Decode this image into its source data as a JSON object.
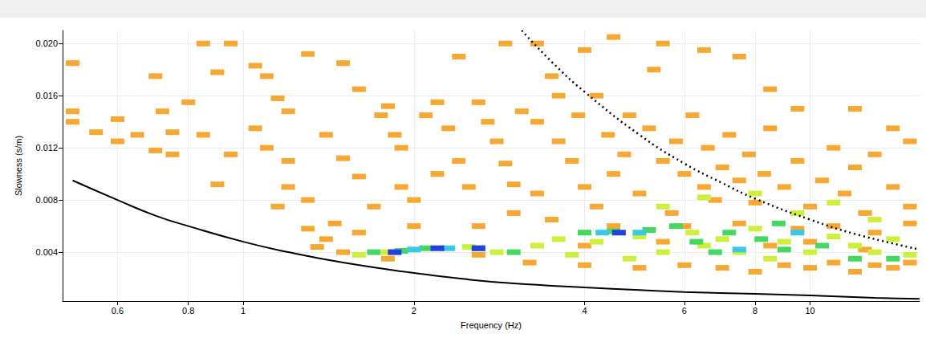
{
  "chart_data": {
    "type": "scatter",
    "x_label": "Frequency (Hz)",
    "y_label": "Slowness (s/m)",
    "log": "x",
    "grid": true,
    "xlim": [
      0.48,
      15.6
    ],
    "ylim": [
      0.00025,
      0.021
    ],
    "xticks": [
      0.6,
      0.8,
      1,
      2,
      4,
      6,
      8,
      10
    ],
    "yticks": [
      0.004,
      0.008,
      0.012,
      0.016,
      {
        "value": 0.02,
        "label": "0.020"
      }
    ],
    "series": [
      {
        "type": "scatter",
        "color": "#f7a833",
        "marker": "square",
        "x": [
          0.5,
          0.5,
          0.5,
          0.55,
          0.6,
          0.6,
          0.65,
          0.7,
          0.7,
          0.75,
          0.75,
          0.8,
          0.85,
          0.9,
          0.95,
          0.85,
          0.95,
          1.05,
          1.1,
          1.15,
          1.05,
          1.1,
          1.2,
          1.2,
          1.3,
          1.15,
          1.3,
          1.4,
          1.35,
          1.5,
          1.45,
          1.6,
          1.4,
          1.5,
          1.3,
          1.5,
          1.6,
          1.6,
          1.7,
          1.75,
          1.8,
          1.85,
          1.9,
          1.9,
          2.0,
          2.0,
          2.1,
          2.2,
          2.3,
          2.4,
          2.2,
          2.5,
          2.6,
          2.6,
          2.7,
          2.8,
          2.9,
          3.0,
          3.0,
          3.1,
          3.3,
          3.3,
          3.5,
          3.6,
          3.6,
          3.5,
          3.8,
          3.9,
          4.0,
          4.2,
          4.2,
          4.4,
          4.5,
          4.7,
          4.8,
          5.0,
          5.2,
          5.3,
          5.5,
          5.7,
          5.8,
          6.0,
          6.2,
          6.5,
          6.6,
          6.8,
          7.0,
          7.2,
          7.5,
          7.8,
          8.0,
          8.3,
          8.5,
          9.0,
          9.5,
          10,
          10.5,
          11,
          11.5,
          12,
          12.5,
          13,
          14,
          15,
          15,
          3.3,
          4.0,
          4.5,
          5.5,
          6.5,
          7.5,
          8.5,
          9.5,
          12,
          14,
          0.72,
          0.9,
          1.2,
          2.4,
          2.9,
          1.8,
          2.6,
          3.2,
          4.0,
          5.0,
          6.0,
          7.0,
          8.0,
          9.0,
          10,
          11,
          12,
          13,
          14,
          15,
          4.5,
          6.0,
          7.5,
          9.5,
          11,
          13,
          15,
          4.0,
          5.5,
          8.5,
          10,
          12.5
        ],
        "values": [
          0.0185,
          0.0148,
          0.014,
          0.0132,
          0.0142,
          0.0125,
          0.013,
          0.0118,
          0.0175,
          0.0115,
          0.0132,
          0.0155,
          0.013,
          0.0178,
          0.0115,
          0.02,
          0.02,
          0.0183,
          0.0175,
          0.0158,
          0.0135,
          0.012,
          0.011,
          0.009,
          0.008,
          0.0075,
          0.0058,
          0.005,
          0.0044,
          0.004,
          0.0062,
          0.0055,
          0.013,
          0.0112,
          0.0192,
          0.0185,
          0.0165,
          0.0098,
          0.0075,
          0.0145,
          0.0152,
          0.013,
          0.012,
          0.009,
          0.008,
          0.006,
          0.0145,
          0.0155,
          0.0135,
          0.011,
          0.01,
          0.009,
          0.0155,
          0.006,
          0.014,
          0.0125,
          0.0108,
          0.0092,
          0.007,
          0.0148,
          0.014,
          0.0085,
          0.0175,
          0.016,
          0.0125,
          0.0065,
          0.011,
          0.0145,
          0.009,
          0.0075,
          0.016,
          0.013,
          0.01,
          0.0115,
          0.0145,
          0.0085,
          0.0135,
          0.018,
          0.011,
          0.007,
          0.0125,
          0.01,
          0.0145,
          0.009,
          0.012,
          0.008,
          0.0105,
          0.013,
          0.0095,
          0.0115,
          0.0078,
          0.01,
          0.0135,
          0.009,
          0.011,
          0.0075,
          0.0095,
          0.012,
          0.0085,
          0.0105,
          0.007,
          0.0115,
          0.009,
          0.0075,
          0.0125,
          0.02,
          0.0195,
          0.0205,
          0.02,
          0.0195,
          0.019,
          0.0165,
          0.015,
          0.015,
          0.0135,
          0.0148,
          0.0092,
          0.0148,
          0.019,
          0.02,
          0.0035,
          0.0038,
          0.0032,
          0.003,
          0.0028,
          0.003,
          0.0028,
          0.0025,
          0.003,
          0.0028,
          0.0032,
          0.0025,
          0.003,
          0.0028,
          0.0032,
          0.006,
          0.006,
          0.0062,
          0.0058,
          0.006,
          0.0055,
          0.0062,
          0.0045,
          0.0048,
          0.0045,
          0.0048,
          0.0042
        ]
      },
      {
        "type": "scatter",
        "color": "#ccf03c",
        "marker": "square",
        "x": [
          1.6,
          1.8,
          2.5,
          2.8,
          3.3,
          3.6,
          4.2,
          5.0,
          5.5,
          6.2,
          6.5,
          7.0,
          7.5,
          8.0,
          8.5,
          9.0,
          10,
          11,
          12,
          13,
          14,
          15,
          5.5,
          6.5,
          8.0,
          9.5,
          11,
          4.8,
          3.8,
          13
        ],
        "values": [
          0.0038,
          0.004,
          0.0044,
          0.004,
          0.0045,
          0.005,
          0.0048,
          0.0052,
          0.004,
          0.0055,
          0.0045,
          0.005,
          0.004,
          0.0058,
          0.0035,
          0.0048,
          0.004,
          0.0052,
          0.0045,
          0.004,
          0.005,
          0.0038,
          0.0075,
          0.0082,
          0.0085,
          0.007,
          0.0078,
          0.0035,
          0.0038,
          0.0065
        ]
      },
      {
        "type": "scatter",
        "color": "#44d860",
        "marker": "square",
        "x": [
          1.7,
          1.9,
          2.1,
          2.6,
          3.0,
          4.0,
          4.5,
          5.2,
          5.8,
          6.3,
          7.2,
          8.2,
          9.0,
          10.5,
          12,
          14,
          6.8,
          8.8
        ],
        "values": [
          0.004,
          0.0041,
          0.0043,
          0.0043,
          0.004,
          0.0055,
          0.0056,
          0.0057,
          0.006,
          0.0048,
          0.0055,
          0.005,
          0.0042,
          0.0045,
          0.0035,
          0.0035,
          0.004,
          0.0062
        ]
      },
      {
        "type": "scatter",
        "color": "#38c8e8",
        "marker": "square",
        "x": [
          2.0,
          2.3,
          4.3,
          5.0,
          7.5,
          9.5
        ],
        "values": [
          0.0042,
          0.0043,
          0.0055,
          0.0055,
          0.0042,
          0.0055
        ]
      },
      {
        "type": "scatter",
        "color": "#2040e0",
        "marker": "square",
        "x": [
          1.85,
          2.2,
          2.6,
          4.6
        ],
        "values": [
          0.004,
          0.0043,
          0.0043,
          0.0055
        ]
      },
      {
        "type": "line",
        "color": "#000000",
        "line_style": "solid",
        "x": [
          0.5,
          0.6,
          0.7,
          0.8,
          1,
          1.2,
          1.5,
          2,
          2.5,
          3,
          4,
          5,
          6,
          8,
          10,
          13,
          15.6
        ],
        "values": [
          0.0095,
          0.008,
          0.0068,
          0.006,
          0.0048,
          0.004,
          0.0032,
          0.0024,
          0.0019,
          0.0016,
          0.0013,
          0.0011,
          0.00095,
          0.0008,
          0.00068,
          0.0005,
          0.00042
        ]
      },
      {
        "type": "line",
        "color": "#000000",
        "line_style": "dotted",
        "x": [
          3.1,
          3.5,
          4,
          5,
          6,
          7,
          8,
          10,
          12,
          15.6
        ],
        "values": [
          0.021,
          0.0186,
          0.0163,
          0.013,
          0.0108,
          0.0093,
          0.0081,
          0.0065,
          0.0054,
          0.0042
        ]
      }
    ]
  }
}
